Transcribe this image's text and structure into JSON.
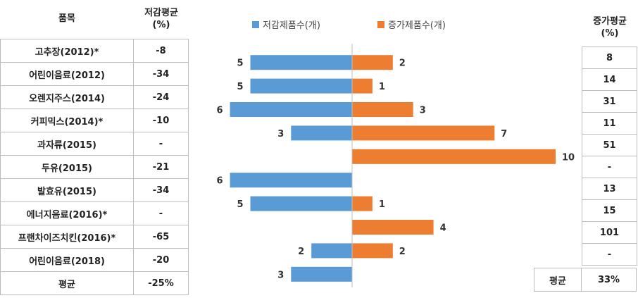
{
  "left_table": {
    "header_item": "품목",
    "header_dec_line1": "저감평균",
    "header_dec_line2": "(%)",
    "rows": [
      {
        "name": "고추장(2012)*",
        "dec_avg": "-8"
      },
      {
        "name": "어린이음료(2012)",
        "dec_avg": "-34"
      },
      {
        "name": "오렌지주스(2014)",
        "dec_avg": "-24"
      },
      {
        "name": "커피믹스(2014)*",
        "dec_avg": "-10"
      },
      {
        "name": "과자류(2015)",
        "dec_avg": "-"
      },
      {
        "name": "두유(2015)",
        "dec_avg": "-21"
      },
      {
        "name": "발효유(2015)",
        "dec_avg": "-34"
      },
      {
        "name": "에너지음료(2016)*",
        "dec_avg": "-"
      },
      {
        "name": "프랜차이즈치킨(2016)*",
        "dec_avg": "-65"
      },
      {
        "name": "어린이음료(2018)",
        "dec_avg": "-20"
      }
    ],
    "avg_label": "평균",
    "avg_value": "-25%"
  },
  "right_table": {
    "header_line1": "증가평균",
    "header_line2": "(%)",
    "values": [
      "8",
      "14",
      "31",
      "11",
      "51",
      "-",
      "13",
      "15",
      "101",
      "-"
    ],
    "avg_label": "평균",
    "avg_value": "33%"
  },
  "chart_data": {
    "type": "bar",
    "orientation": "horizontal-diverging",
    "categories": [
      "고추장(2012)*",
      "어린이음료(2012)",
      "오렌지주스(2014)",
      "커피믹스(2014)*",
      "과자류(2015)",
      "두유(2015)",
      "발효유(2015)",
      "에너지음료(2016)*",
      "프랜차이즈치킨(2016)*",
      "어린이음료(2018)"
    ],
    "series": [
      {
        "name": "저감제품수(개)",
        "color": "#5B9BD5",
        "values": [
          5,
          5,
          6,
          3,
          0,
          6,
          5,
          0,
          2,
          3
        ]
      },
      {
        "name": "증가제품수(개)",
        "color": "#ED7D31",
        "values": [
          2,
          1,
          3,
          7,
          10,
          0,
          1,
          4,
          2,
          0
        ]
      }
    ],
    "xlim": [
      -6,
      10
    ],
    "grid": false,
    "legend_position": "top"
  }
}
